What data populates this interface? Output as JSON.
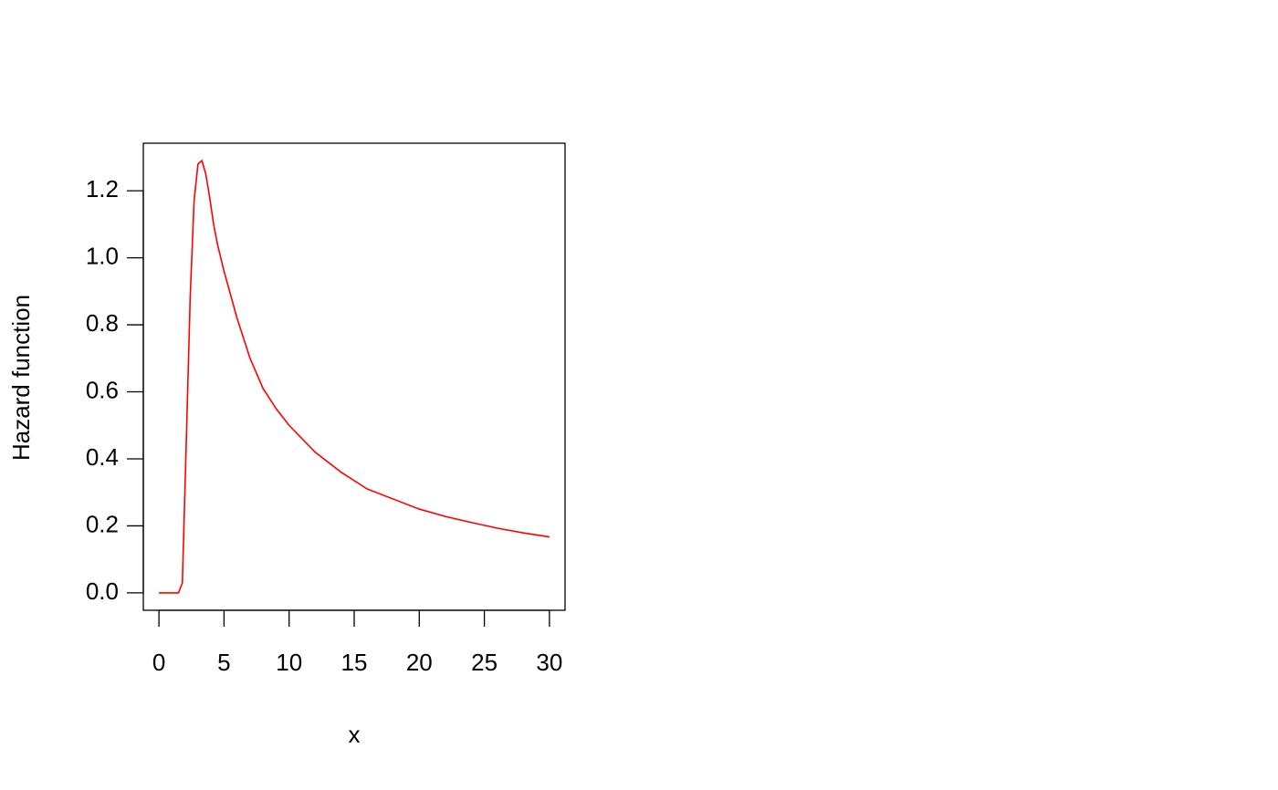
{
  "chart_data": {
    "type": "line",
    "xlabel": "x",
    "ylabel": "Hazard function",
    "x": [
      0,
      0.3,
      0.6,
      0.9,
      1.2,
      1.5,
      1.8,
      2.1,
      2.4,
      2.7,
      3.0,
      3.3,
      3.6,
      3.9,
      4.2,
      4.5,
      5,
      6,
      7,
      8,
      9,
      10,
      12,
      14,
      16,
      18,
      20,
      22,
      24,
      26,
      28,
      30
    ],
    "series": [
      {
        "name": "Hazard",
        "color": "#ff0000",
        "values": [
          0,
          0,
          0,
          0,
          0,
          0,
          0.03,
          0.45,
          0.88,
          1.17,
          1.28,
          1.29,
          1.25,
          1.18,
          1.1,
          1.04,
          0.96,
          0.82,
          0.7,
          0.61,
          0.55,
          0.5,
          0.42,
          0.36,
          0.31,
          0.28,
          0.25,
          0.228,
          0.21,
          0.193,
          0.179,
          0.167
        ]
      }
    ],
    "xlim": [
      -1.2,
      31.2
    ],
    "ylim": [
      -0.052,
      1.342
    ],
    "xticks": [
      0,
      5,
      10,
      15,
      20,
      25,
      30
    ],
    "yticks": [
      {
        "value": 0,
        "label": "0.0"
      },
      0.2,
      0.4,
      0.6,
      0.8,
      {
        "value": 1,
        "label": "1.0"
      },
      1.2
    ]
  }
}
